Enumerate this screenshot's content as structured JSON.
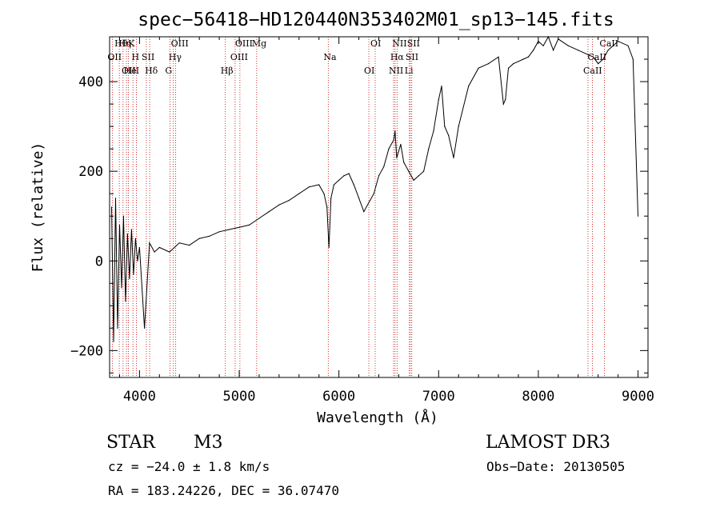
{
  "chart_data": {
    "type": "line",
    "title": "spec−56418−HD120440N353402M01_sp13−145.fits",
    "xlabel": "Wavelength (Å)",
    "ylabel": "Flux (relative)",
    "xlim": [
      3700,
      9100
    ],
    "ylim": [
      -260,
      500
    ],
    "x_ticks": [
      4000,
      5000,
      6000,
      7000,
      8000,
      9000
    ],
    "x_tick_labels": [
      "4000",
      "5000",
      "6000",
      "7000",
      "8000",
      "9000"
    ],
    "y_ticks": [
      -200,
      0,
      200,
      400
    ],
    "y_tick_labels": [
      "−200",
      "0",
      "200",
      "400"
    ],
    "series": [
      {
        "name": "spectrum",
        "color": "#000000",
        "x": [
          3720,
          3740,
          3760,
          3780,
          3800,
          3820,
          3840,
          3860,
          3880,
          3900,
          3920,
          3940,
          3960,
          3980,
          4000,
          4050,
          4100,
          4150,
          4200,
          4300,
          4400,
          4500,
          4600,
          4700,
          4800,
          4900,
          5000,
          5100,
          5200,
          5300,
          5400,
          5500,
          5600,
          5700,
          5800,
          5850,
          5880,
          5900,
          5920,
          5950,
          6000,
          6050,
          6100,
          6150,
          6200,
          6250,
          6300,
          6350,
          6400,
          6450,
          6500,
          6550,
          6563,
          6580,
          6620,
          6650,
          6700,
          6750,
          6800,
          6850,
          6900,
          6950,
          7000,
          7030,
          7060,
          7100,
          7150,
          7200,
          7300,
          7400,
          7500,
          7600,
          7650,
          7670,
          7700,
          7750,
          7800,
          7850,
          7900,
          7950,
          8000,
          8050,
          8100,
          8150,
          8200,
          8300,
          8400,
          8500,
          8550,
          8600,
          8650,
          8700,
          8800,
          8900,
          8950,
          9000
        ],
        "y": [
          120,
          -180,
          140,
          -150,
          80,
          -60,
          100,
          -90,
          60,
          -40,
          70,
          -30,
          50,
          0,
          30,
          -150,
          40,
          20,
          30,
          20,
          40,
          35,
          50,
          55,
          65,
          70,
          75,
          80,
          95,
          110,
          125,
          135,
          150,
          165,
          170,
          150,
          120,
          30,
          140,
          170,
          180,
          190,
          195,
          170,
          140,
          110,
          130,
          150,
          190,
          210,
          250,
          270,
          290,
          230,
          260,
          220,
          200,
          180,
          190,
          200,
          250,
          290,
          360,
          390,
          300,
          280,
          230,
          300,
          390,
          430,
          440,
          455,
          350,
          360,
          430,
          440,
          445,
          450,
          455,
          470,
          490,
          480,
          500,
          470,
          495,
          480,
          470,
          460,
          455,
          440,
          450,
          470,
          490,
          480,
          450,
          100
        ]
      }
    ],
    "lines": [
      {
        "label": "Hθ",
        "wavelength": 3797
      },
      {
        "label": "OII",
        "wavelength": 3727
      },
      {
        "label": "OIII",
        "wavelength": 3869
      },
      {
        "label": "K",
        "wavelength": 3934
      },
      {
        "label": "H",
        "wavelength": 3969
      },
      {
        "label": "He",
        "wavelength": 3889
      },
      {
        "label": "Hη",
        "wavelength": 3835
      },
      {
        "label": "SII",
        "wavelength": 4069
      },
      {
        "label": "Hδ",
        "wavelength": 4102
      },
      {
        "label": "OIII",
        "wavelength": 4363
      },
      {
        "label": "Hγ",
        "wavelength": 4340
      },
      {
        "label": "G",
        "wavelength": 4305
      },
      {
        "label": "OIII",
        "wavelength": 5007
      },
      {
        "label": "OIII",
        "wavelength": 4959
      },
      {
        "label": "Hβ",
        "wavelength": 4861
      },
      {
        "label": "Mg",
        "wavelength": 5175
      },
      {
        "label": "Na",
        "wavelength": 5893
      },
      {
        "label": "OI",
        "wavelength": 6300
      },
      {
        "label": "OI",
        "wavelength": 6364
      },
      {
        "label": "Hα",
        "wavelength": 6563
      },
      {
        "label": "NII",
        "wavelength": 6548
      },
      {
        "label": "NII",
        "wavelength": 6583
      },
      {
        "label": "SII",
        "wavelength": 6716
      },
      {
        "label": "Li",
        "wavelength": 6707
      },
      {
        "label": "SII",
        "wavelength": 6731
      },
      {
        "label": "CaII",
        "wavelength": 8542
      },
      {
        "label": "CaII",
        "wavelength": 8498
      },
      {
        "label": "CaII",
        "wavelength": 8662
      }
    ]
  },
  "info": {
    "class": "STAR",
    "subclass": "M3",
    "survey": "LAMOST DR3",
    "redshift": "cz = −24.0 ± 1.8 km/s",
    "obs_date": "Obs−Date: 20130505",
    "coords": "RA = 183.24226, DEC =  36.07470"
  }
}
